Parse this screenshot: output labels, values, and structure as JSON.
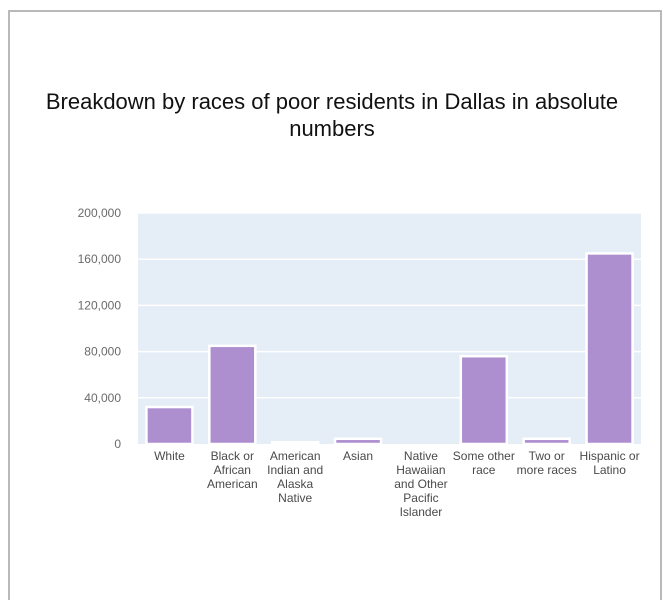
{
  "chart_data": {
    "type": "bar",
    "title": "Breakdown by races of poor residents in Dallas in absolute numbers",
    "categories": [
      "White",
      "Black or African American",
      "American Indian and Alaska Native",
      "Asian",
      "Native Hawaiian and Other Pacific Islander",
      "Some other race",
      "Two or more races",
      "Hispanic or Latino"
    ],
    "category_lines": [
      [
        "White"
      ],
      [
        "Black or",
        "African",
        "American"
      ],
      [
        "American",
        "Indian and",
        "Alaska",
        "Native"
      ],
      [
        "Asian"
      ],
      [
        "Native",
        "Hawaiian",
        "and Other",
        "Pacific",
        "Islander"
      ],
      [
        "Some other",
        "race"
      ],
      [
        "Two or",
        "more races"
      ],
      [
        "Hispanic or",
        "Latino"
      ]
    ],
    "values": [
      32000,
      85000,
      1500,
      4500,
      0,
      76000,
      4500,
      165000
    ],
    "y_ticks": [
      "0",
      "40,000",
      "80,000",
      "120,000",
      "160,000",
      "200,000"
    ],
    "ylim": [
      0,
      200000
    ],
    "grid": true,
    "colors": {
      "bar": "#ad8fd0",
      "bar_outline": "#ffffff",
      "plot_background": "#e5edf7",
      "gridline": "#ffffff"
    }
  }
}
